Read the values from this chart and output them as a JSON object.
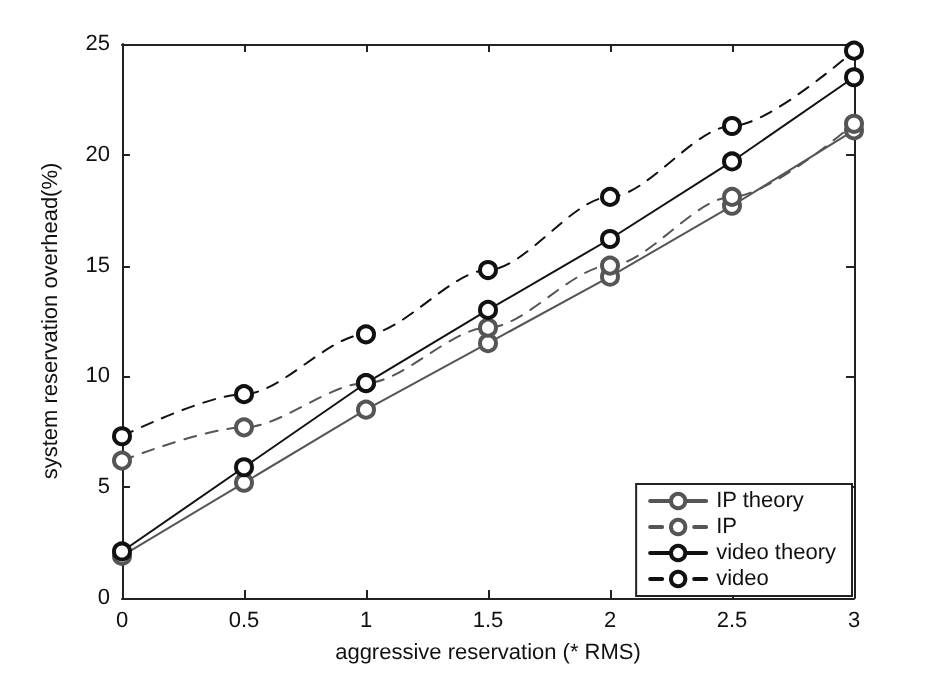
{
  "chart_data": {
    "type": "line",
    "xlabel": "aggressive reservation (* RMS)",
    "ylabel": "system reservation overhead(%)",
    "x": [
      0,
      0.5,
      1,
      1.5,
      2,
      2.5,
      3
    ],
    "series": [
      {
        "name": "IP theory",
        "color": "#555555",
        "values": [
          1.9,
          5.2,
          8.5,
          11.5,
          14.5,
          17.7,
          21.1
        ],
        "line_style": "solid",
        "marker": "circle"
      },
      {
        "name": "IP",
        "color": "#555555",
        "values": [
          6.2,
          7.7,
          9.7,
          12.2,
          15.0,
          18.1,
          21.4
        ],
        "line_style": "dashed",
        "marker": "circle"
      },
      {
        "name": "video theory",
        "color": "#111111",
        "values": [
          2.1,
          5.9,
          9.7,
          13.0,
          16.2,
          19.7,
          23.5
        ],
        "line_style": "solid",
        "marker": "circle"
      },
      {
        "name": "video",
        "color": "#111111",
        "values": [
          7.3,
          9.2,
          11.9,
          14.8,
          18.1,
          21.3,
          24.7
        ],
        "line_style": "dashed",
        "marker": "circle"
      }
    ],
    "xlim": [
      0,
      3
    ],
    "xticks": [
      0,
      0.5,
      1,
      1.5,
      2,
      2.5,
      3
    ],
    "ylim": [
      0,
      25
    ],
    "yticks": [
      0,
      5,
      10,
      15,
      20,
      25
    ],
    "grid": false,
    "legend": "bottom right"
  }
}
